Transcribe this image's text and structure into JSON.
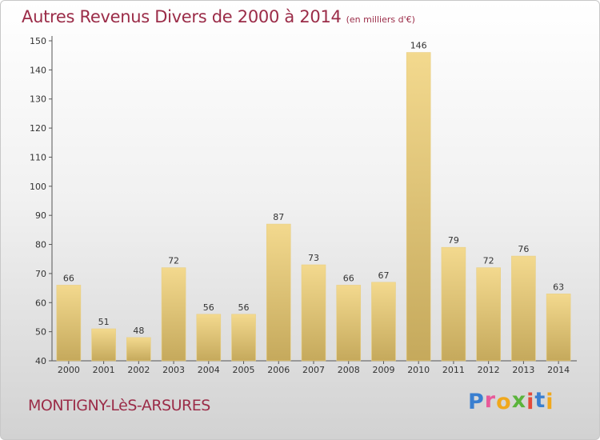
{
  "header": {
    "title": "Autres Revenus Divers de 2000 à 2014",
    "unit": "(en milliers d'€)"
  },
  "footer": {
    "place": "MONTIGNY-LèS-ARSURES",
    "brand": "Proxiti"
  },
  "colors": {
    "title": "#9b2c48",
    "bar_top": "#f3d98e",
    "bar_bottom": "#c5a95c",
    "brand_letters": [
      "#3a7fd0",
      "#e85a9a",
      "#f0a81c",
      "#5bb43b",
      "#e34a3a",
      "#3a7fd0",
      "#f0a81c"
    ]
  },
  "chart_data": {
    "type": "bar",
    "categories": [
      "2000",
      "2001",
      "2002",
      "2003",
      "2004",
      "2005",
      "2006",
      "2007",
      "2008",
      "2009",
      "2010",
      "2011",
      "2012",
      "2013",
      "2014"
    ],
    "values": [
      66,
      51,
      48,
      72,
      56,
      56,
      87,
      73,
      66,
      67,
      146,
      79,
      72,
      76,
      63
    ],
    "data_labels": [
      "66",
      "51",
      "48",
      "72",
      "56",
      "56",
      "87",
      "73",
      "66",
      "67",
      "146",
      "79",
      "72",
      "76",
      "63"
    ],
    "ylim": [
      40,
      150
    ],
    "yticks": [
      40,
      50,
      60,
      70,
      80,
      90,
      100,
      110,
      120,
      130,
      140,
      150
    ],
    "grid": false,
    "xlabel": "",
    "ylabel": ""
  }
}
